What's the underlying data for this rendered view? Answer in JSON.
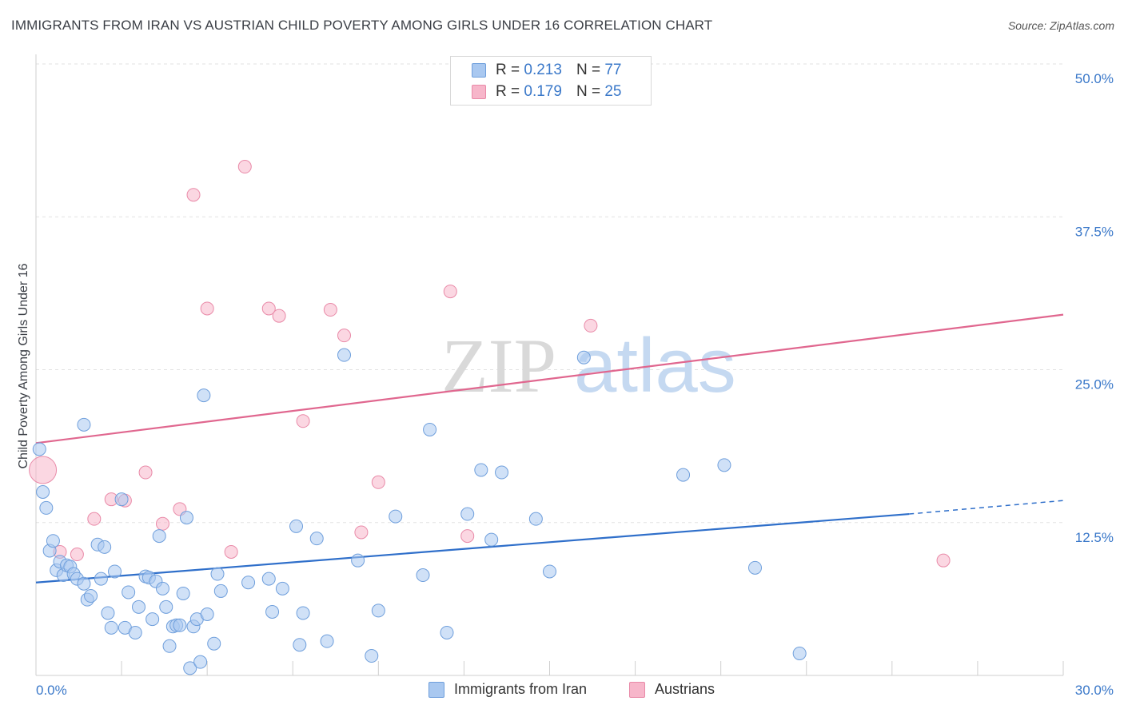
{
  "title": "IMMIGRANTS FROM IRAN VS AUSTRIAN CHILD POVERTY AMONG GIRLS UNDER 16 CORRELATION CHART",
  "source": "Source: ZipAtlas.com",
  "watermark": {
    "zip": "ZIP",
    "atlas": "atlas"
  },
  "legend": {
    "rows": [
      {
        "r_label": "R = ",
        "r_value": "0.213",
        "n_label": "N = ",
        "n_value": "77"
      },
      {
        "r_label": "R = ",
        "r_value": "0.179",
        "n_label": "N = ",
        "n_value": "25"
      }
    ]
  },
  "colors": {
    "blue_fill": "#a9c8f0",
    "blue_stroke": "#6f9fdc",
    "blue_line": "#2f6fca",
    "pink_fill": "#f7b6ca",
    "pink_stroke": "#e98aa8",
    "pink_line": "#e0678f",
    "tick_text": "#3a78c9"
  },
  "chart_data": {
    "type": "scatter",
    "title": "IMMIGRANTS FROM IRAN VS AUSTRIAN CHILD POVERTY AMONG GIRLS UNDER 16 CORRELATION CHART",
    "xlabel": "",
    "ylabel": "Child Poverty Among Girls Under 16",
    "xlim": [
      0,
      30
    ],
    "ylim": [
      0,
      50
    ],
    "x_tick_labels": [
      "0.0%",
      "30.0%"
    ],
    "y_ticks": [
      12.5,
      25.0,
      37.5,
      50.0
    ],
    "y_tick_labels": [
      "12.5%",
      "25.0%",
      "37.5%",
      "50.0%"
    ],
    "grid": true,
    "series": [
      {
        "name": "Immigrants from Iran",
        "color": "#a9c8f0",
        "trend": {
          "x": [
            0,
            25.5
          ],
          "y": [
            7.6,
            13.2
          ],
          "dashed_to": [
            30,
            14.3
          ]
        },
        "points": [
          [
            0.1,
            18.5
          ],
          [
            0.2,
            15.0
          ],
          [
            0.3,
            13.7
          ],
          [
            0.4,
            10.2
          ],
          [
            0.5,
            11.0
          ],
          [
            0.6,
            8.6
          ],
          [
            0.7,
            9.3
          ],
          [
            0.8,
            8.2
          ],
          [
            0.9,
            9.0
          ],
          [
            1.0,
            8.9
          ],
          [
            1.1,
            8.3
          ],
          [
            1.2,
            7.9
          ],
          [
            1.4,
            7.5
          ],
          [
            1.5,
            6.2
          ],
          [
            1.6,
            6.5
          ],
          [
            1.8,
            10.7
          ],
          [
            1.9,
            7.9
          ],
          [
            2.0,
            10.5
          ],
          [
            1.4,
            20.5
          ],
          [
            2.1,
            5.1
          ],
          [
            2.2,
            3.9
          ],
          [
            2.3,
            8.5
          ],
          [
            2.5,
            14.4
          ],
          [
            2.6,
            3.9
          ],
          [
            2.7,
            6.8
          ],
          [
            2.9,
            3.5
          ],
          [
            3.0,
            5.6
          ],
          [
            3.2,
            8.1
          ],
          [
            3.3,
            8.0
          ],
          [
            3.4,
            4.6
          ],
          [
            3.5,
            7.7
          ],
          [
            3.6,
            11.4
          ],
          [
            3.7,
            7.1
          ],
          [
            3.8,
            5.6
          ],
          [
            3.9,
            2.4
          ],
          [
            4.0,
            4.0
          ],
          [
            4.1,
            4.1
          ],
          [
            4.2,
            4.1
          ],
          [
            4.3,
            6.7
          ],
          [
            4.4,
            12.9
          ],
          [
            4.5,
            0.6
          ],
          [
            4.6,
            4.0
          ],
          [
            4.7,
            4.6
          ],
          [
            4.8,
            1.1
          ],
          [
            4.9,
            22.9
          ],
          [
            5.0,
            5.0
          ],
          [
            5.2,
            2.6
          ],
          [
            5.3,
            8.3
          ],
          [
            5.4,
            6.9
          ],
          [
            6.2,
            7.6
          ],
          [
            6.8,
            7.9
          ],
          [
            6.9,
            5.2
          ],
          [
            7.2,
            7.1
          ],
          [
            7.6,
            12.2
          ],
          [
            7.7,
            2.5
          ],
          [
            7.8,
            5.1
          ],
          [
            8.2,
            11.2
          ],
          [
            8.5,
            2.8
          ],
          [
            9.0,
            26.2
          ],
          [
            9.4,
            9.4
          ],
          [
            9.8,
            1.6
          ],
          [
            10.0,
            5.3
          ],
          [
            10.5,
            13.0
          ],
          [
            11.3,
            8.2
          ],
          [
            11.5,
            20.1
          ],
          [
            12.0,
            3.5
          ],
          [
            12.6,
            13.2
          ],
          [
            13.0,
            16.8
          ],
          [
            13.3,
            11.1
          ],
          [
            13.6,
            16.6
          ],
          [
            14.6,
            12.8
          ],
          [
            15.0,
            8.5
          ],
          [
            16.0,
            26.0
          ],
          [
            18.9,
            16.4
          ],
          [
            20.1,
            17.2
          ],
          [
            21.0,
            8.8
          ],
          [
            22.3,
            1.8
          ]
        ]
      },
      {
        "name": "Austrians",
        "color": "#f7b6ca",
        "trend": {
          "x": [
            0,
            30
          ],
          "y": [
            19.0,
            29.5
          ]
        },
        "points": [
          [
            0.2,
            16.8
          ],
          [
            0.7,
            10.1
          ],
          [
            1.2,
            9.9
          ],
          [
            1.7,
            12.8
          ],
          [
            2.2,
            14.4
          ],
          [
            2.6,
            14.3
          ],
          [
            3.2,
            16.6
          ],
          [
            3.7,
            12.4
          ],
          [
            4.2,
            13.6
          ],
          [
            4.6,
            39.3
          ],
          [
            5.0,
            30.0
          ],
          [
            5.7,
            10.1
          ],
          [
            6.1,
            41.6
          ],
          [
            6.8,
            30.0
          ],
          [
            7.1,
            29.4
          ],
          [
            7.8,
            20.8
          ],
          [
            8.6,
            29.9
          ],
          [
            9.0,
            27.8
          ],
          [
            9.5,
            11.7
          ],
          [
            10.0,
            15.8
          ],
          [
            12.1,
            31.4
          ],
          [
            12.6,
            11.4
          ],
          [
            14.2,
            49.8
          ],
          [
            16.2,
            28.6
          ],
          [
            26.5,
            9.4
          ]
        ]
      }
    ]
  },
  "bottom_legend": {
    "blue": "Immigrants from Iran",
    "pink": "Austrians"
  }
}
